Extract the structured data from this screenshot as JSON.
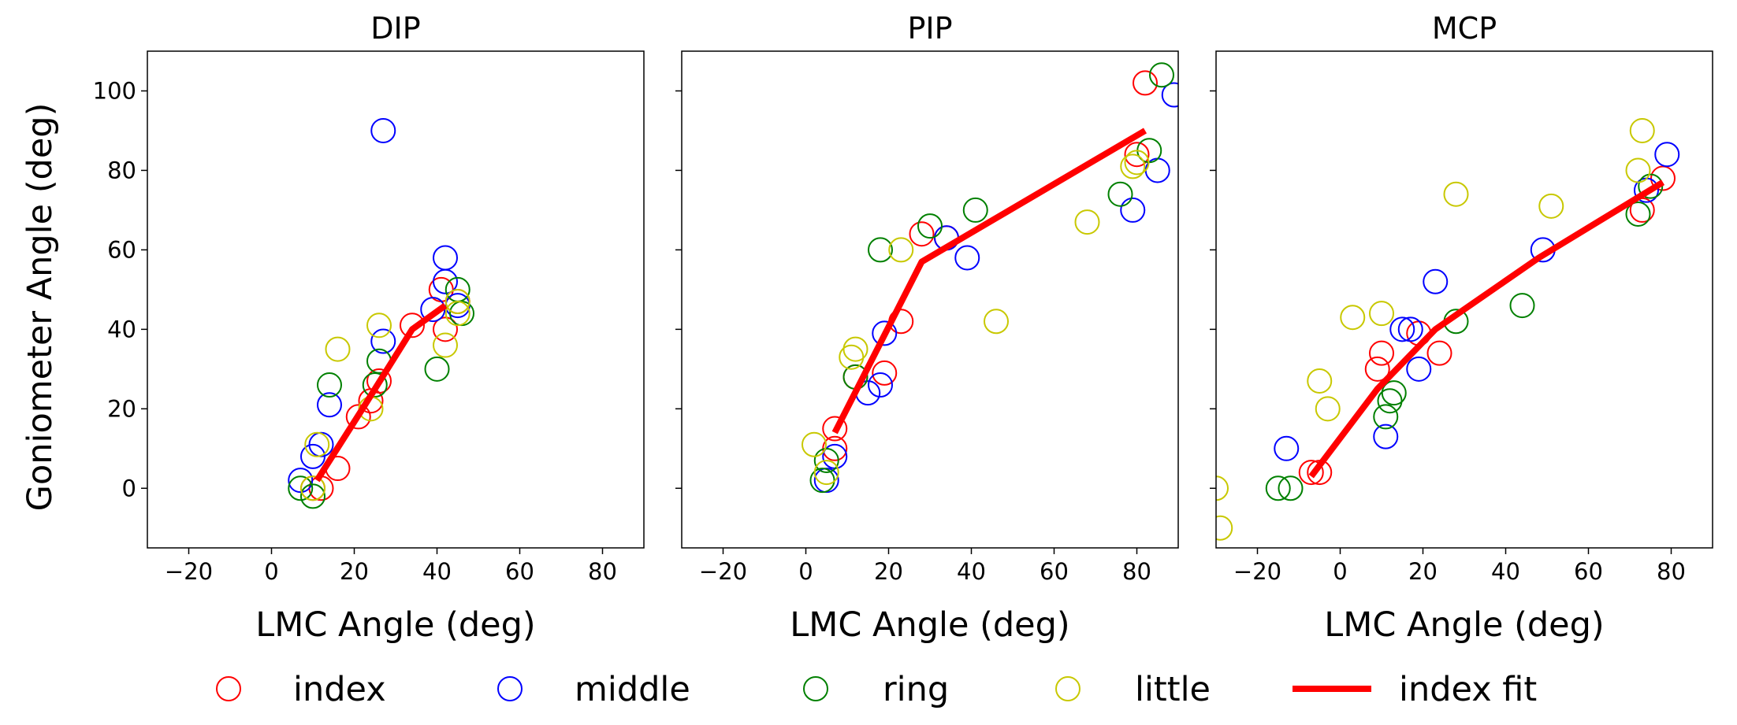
{
  "chart_data": [
    {
      "type": "scatter",
      "title": "DIP",
      "xlabel": "LMC Angle (deg)",
      "ylabel": "Goniometer Angle (deg)",
      "xlim": [
        -30,
        90
      ],
      "ylim": [
        -15,
        110
      ],
      "xticks": [
        -20,
        0,
        20,
        40,
        60,
        80
      ],
      "yticks": [
        0,
        20,
        40,
        60,
        80,
        100
      ],
      "series": [
        {
          "name": "index",
          "color": "#ff0000",
          "points": [
            [
              10,
              0
            ],
            [
              12,
              0
            ],
            [
              16,
              5
            ],
            [
              21,
              18
            ],
            [
              24,
              22
            ],
            [
              26,
              27
            ],
            [
              34,
              41
            ],
            [
              41,
              50
            ],
            [
              42,
              40
            ],
            [
              45,
              47
            ]
          ]
        },
        {
          "name": "middle",
          "color": "#0000ff",
          "points": [
            [
              7,
              2
            ],
            [
              10,
              8
            ],
            [
              12,
              11
            ],
            [
              14,
              21
            ],
            [
              27,
              90
            ],
            [
              27,
              37
            ],
            [
              39,
              45
            ],
            [
              42,
              58
            ],
            [
              42,
              52
            ],
            [
              45,
              46
            ]
          ]
        },
        {
          "name": "ring",
          "color": "#008000",
          "points": [
            [
              7,
              0
            ],
            [
              10,
              -2
            ],
            [
              14,
              26
            ],
            [
              25,
              26
            ],
            [
              26,
              32
            ],
            [
              40,
              30
            ],
            [
              45,
              50
            ],
            [
              46,
              44
            ]
          ]
        },
        {
          "name": "little",
          "color": "#c8c800",
          "points": [
            [
              10,
              0
            ],
            [
              11,
              11
            ],
            [
              16,
              35
            ],
            [
              24,
              20
            ],
            [
              26,
              41
            ],
            [
              42,
              36
            ],
            [
              45,
              47
            ],
            [
              45,
              44
            ]
          ]
        },
        {
          "name": "index fit",
          "color": "#ff0000",
          "line": true,
          "points": [
            [
              11,
              2
            ],
            [
              22,
              20
            ],
            [
              34,
              40
            ],
            [
              42,
              46
            ]
          ]
        }
      ]
    },
    {
      "type": "scatter",
      "title": "PIP",
      "xlabel": "LMC Angle (deg)",
      "ylabel": "",
      "xlim": [
        -30,
        90
      ],
      "ylim": [
        -15,
        110
      ],
      "xticks": [
        -20,
        0,
        20,
        40,
        60,
        80
      ],
      "yticks": [
        0,
        20,
        40,
        60,
        80,
        100
      ],
      "series": [
        {
          "name": "index",
          "color": "#ff0000",
          "points": [
            [
              7,
              15
            ],
            [
              7,
              10
            ],
            [
              12,
              28
            ],
            [
              19,
              29
            ],
            [
              23,
              42
            ],
            [
              28,
              64
            ],
            [
              34,
              63
            ],
            [
              80,
              84
            ],
            [
              82,
              102
            ]
          ]
        },
        {
          "name": "middle",
          "color": "#0000ff",
          "points": [
            [
              5,
              2
            ],
            [
              7,
              8
            ],
            [
              15,
              24
            ],
            [
              18,
              26
            ],
            [
              19,
              39
            ],
            [
              34,
              63
            ],
            [
              39,
              58
            ],
            [
              79,
              70
            ],
            [
              85,
              80
            ],
            [
              89,
              99
            ]
          ]
        },
        {
          "name": "ring",
          "color": "#008000",
          "points": [
            [
              4,
              2
            ],
            [
              5,
              7
            ],
            [
              12,
              28
            ],
            [
              18,
              60
            ],
            [
              30,
              66
            ],
            [
              41,
              70
            ],
            [
              76,
              74
            ],
            [
              83,
              85
            ],
            [
              86,
              104
            ]
          ]
        },
        {
          "name": "little",
          "color": "#c8c800",
          "points": [
            [
              2,
              11
            ],
            [
              5,
              4
            ],
            [
              11,
              33
            ],
            [
              12,
              35
            ],
            [
              23,
              60
            ],
            [
              46,
              42
            ],
            [
              68,
              67
            ],
            [
              79,
              81
            ],
            [
              80,
              82
            ]
          ]
        },
        {
          "name": "index fit",
          "color": "#ff0000",
          "line": true,
          "points": [
            [
              7,
              14
            ],
            [
              28,
              57
            ],
            [
              82,
              90
            ]
          ]
        }
      ]
    },
    {
      "type": "scatter",
      "title": "MCP",
      "xlabel": "LMC Angle (deg)",
      "ylabel": "",
      "xlim": [
        -30,
        90
      ],
      "ylim": [
        -15,
        110
      ],
      "xticks": [
        -20,
        0,
        20,
        40,
        60,
        80
      ],
      "yticks": [
        0,
        20,
        40,
        60,
        80,
        100
      ],
      "series": [
        {
          "name": "index",
          "color": "#ff0000",
          "points": [
            [
              -7,
              4
            ],
            [
              -5,
              4
            ],
            [
              9,
              30
            ],
            [
              10,
              34
            ],
            [
              19,
              39
            ],
            [
              24,
              34
            ],
            [
              73,
              70
            ],
            [
              78,
              78
            ]
          ]
        },
        {
          "name": "middle",
          "color": "#0000ff",
          "points": [
            [
              -13,
              10
            ],
            [
              11,
              13
            ],
            [
              15,
              40
            ],
            [
              17,
              40
            ],
            [
              19,
              30
            ],
            [
              23,
              52
            ],
            [
              49,
              60
            ],
            [
              74,
              75
            ],
            [
              79,
              84
            ]
          ]
        },
        {
          "name": "ring",
          "color": "#008000",
          "points": [
            [
              -15,
              0
            ],
            [
              -12,
              0
            ],
            [
              11,
              18
            ],
            [
              12,
              22
            ],
            [
              13,
              24
            ],
            [
              28,
              42
            ],
            [
              44,
              46
            ],
            [
              72,
              69
            ],
            [
              75,
              76
            ]
          ]
        },
        {
          "name": "little",
          "color": "#c8c800",
          "points": [
            [
              -30,
              0
            ],
            [
              -29,
              -10
            ],
            [
              -5,
              27
            ],
            [
              -3,
              20
            ],
            [
              3,
              43
            ],
            [
              10,
              44
            ],
            [
              28,
              74
            ],
            [
              51,
              71
            ],
            [
              72,
              80
            ],
            [
              73,
              90
            ]
          ]
        },
        {
          "name": "index fit",
          "color": "#ff0000",
          "line": true,
          "points": [
            [
              -7,
              3
            ],
            [
              9,
              25
            ],
            [
              23,
              40
            ],
            [
              48,
              58
            ],
            [
              78,
              77
            ]
          ]
        }
      ]
    }
  ],
  "legend": [
    {
      "label": "index",
      "color": "#ff0000",
      "kind": "marker"
    },
    {
      "label": "middle",
      "color": "#0000ff",
      "kind": "marker"
    },
    {
      "label": "ring",
      "color": "#008000",
      "kind": "marker"
    },
    {
      "label": "little",
      "color": "#c8c800",
      "kind": "marker"
    },
    {
      "label": "index fit",
      "color": "#ff0000",
      "kind": "line"
    }
  ]
}
